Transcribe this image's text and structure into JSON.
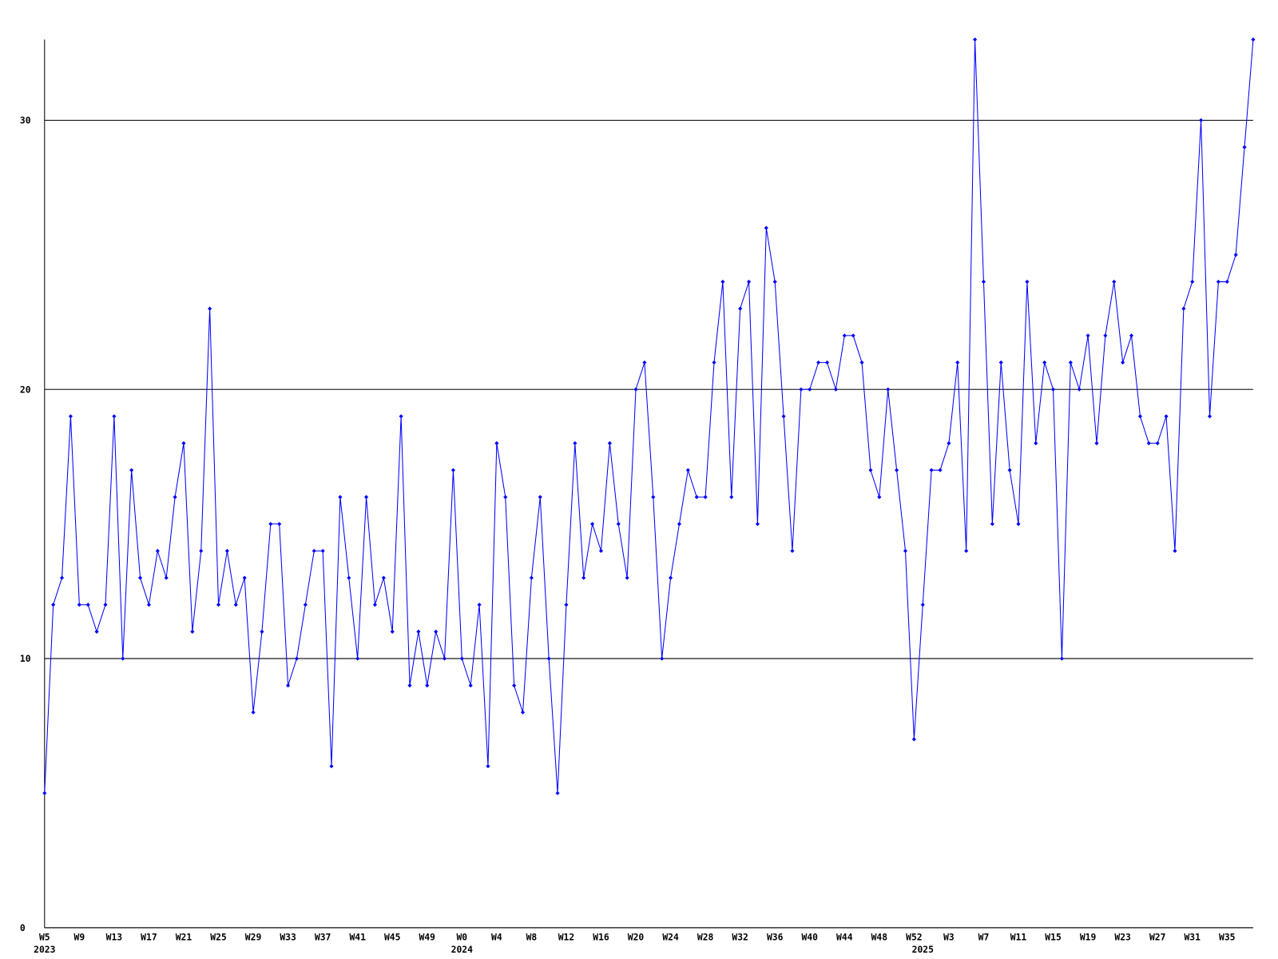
{
  "chart_data": {
    "type": "line",
    "categories": [
      "W5",
      null,
      null,
      null,
      "W9",
      null,
      null,
      null,
      "W13",
      null,
      null,
      null,
      "W17",
      null,
      null,
      null,
      "W21",
      null,
      null,
      null,
      "W25",
      null,
      null,
      null,
      "W29",
      null,
      null,
      null,
      "W33",
      null,
      null,
      null,
      "W37",
      null,
      null,
      null,
      "W41",
      null,
      null,
      null,
      "W45",
      null,
      null,
      null,
      "W49",
      null,
      null,
      null,
      "W0",
      null,
      null,
      null,
      "W4",
      null,
      null,
      null,
      "W8",
      null,
      null,
      null,
      "W12",
      null,
      null,
      null,
      "W16",
      null,
      null,
      null,
      "W20",
      null,
      null,
      null,
      "W24",
      null,
      null,
      null,
      "W28",
      null,
      null,
      null,
      "W32",
      null,
      null,
      null,
      "W36",
      null,
      null,
      null,
      "W40",
      null,
      null,
      null,
      "W44",
      null,
      null,
      null,
      "W48",
      null,
      null,
      null,
      "W52",
      null,
      null,
      null,
      "W3",
      null,
      null,
      null,
      "W7",
      null,
      null,
      null,
      "W11",
      null,
      null,
      null,
      "W15",
      null,
      null,
      null,
      "W19",
      null,
      null,
      null,
      "W23",
      null,
      null,
      null,
      "W27",
      null,
      null,
      null,
      "W31",
      null,
      null,
      null,
      "W35",
      null,
      null,
      null
    ],
    "year_labels": [
      "2023",
      null,
      null,
      null,
      null,
      null,
      null,
      null,
      null,
      null,
      null,
      null,
      null,
      null,
      null,
      null,
      null,
      null,
      null,
      null,
      null,
      null,
      null,
      null,
      null,
      null,
      null,
      null,
      null,
      null,
      null,
      null,
      null,
      null,
      null,
      null,
      null,
      null,
      null,
      null,
      null,
      null,
      null,
      null,
      null,
      null,
      null,
      null,
      "2024",
      null,
      null,
      null,
      null,
      null,
      null,
      null,
      null,
      null,
      null,
      null,
      null,
      null,
      null,
      null,
      null,
      null,
      null,
      null,
      null,
      null,
      null,
      null,
      null,
      null,
      null,
      null,
      null,
      null,
      null,
      null,
      null,
      null,
      null,
      null,
      null,
      null,
      null,
      null,
      null,
      null,
      null,
      null,
      null,
      null,
      null,
      null,
      null,
      null,
      null,
      null,
      null,
      "2025",
      null,
      null,
      null,
      null,
      null,
      null,
      null,
      null,
      null,
      null,
      null,
      null,
      null,
      null,
      null,
      null,
      null,
      null,
      null,
      null,
      null,
      null,
      null,
      null,
      null,
      null,
      null,
      null,
      null,
      null,
      null,
      null,
      null,
      null,
      null,
      null,
      null,
      null
    ],
    "series": [
      {
        "color": "#0000ff",
        "values": [
          5,
          12,
          13,
          19,
          12,
          12,
          11,
          12,
          19,
          10,
          17,
          13,
          12,
          14,
          13,
          16,
          18,
          11,
          14,
          23,
          12,
          14,
          12,
          13,
          8,
          11,
          15,
          15,
          9,
          10,
          12,
          14,
          14,
          6,
          16,
          13,
          10,
          16,
          12,
          13,
          11,
          19,
          9,
          11,
          9,
          11,
          10,
          17,
          10,
          9,
          12,
          6,
          18,
          16,
          9,
          8,
          13,
          16,
          10,
          5,
          12,
          18,
          13,
          15,
          14,
          18,
          15,
          13,
          20,
          21,
          16,
          10,
          13,
          15,
          17,
          16,
          16,
          21,
          24,
          16,
          23,
          24,
          15,
          26,
          24,
          19,
          14,
          20,
          20,
          21,
          21,
          20,
          22,
          22,
          21,
          17,
          16,
          20,
          17,
          14,
          7,
          12,
          17,
          17,
          18,
          21,
          14,
          33,
          24,
          15,
          21,
          17,
          15,
          24,
          18,
          21,
          20,
          10,
          21,
          20,
          22,
          18,
          22,
          24,
          21,
          22,
          19,
          18,
          18,
          19,
          14,
          23,
          24,
          30,
          19,
          24,
          24,
          25,
          29,
          33
        ]
      }
    ],
    "ylim": [
      0,
      33
    ],
    "yticks": [
      0,
      10,
      20,
      30
    ],
    "grid": true
  }
}
